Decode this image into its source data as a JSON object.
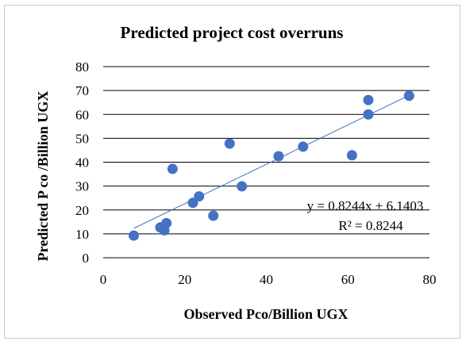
{
  "chart_data": {
    "type": "scatter",
    "title": "Predicted project cost overruns",
    "xlabel": "Observed Pco/Billion UGX",
    "ylabel": "Predicted P co /Billion UGX",
    "xlim": [
      0,
      80
    ],
    "ylim": [
      0,
      80
    ],
    "xticks": [
      "0",
      "20",
      "40",
      "60",
      "80"
    ],
    "yticks": [
      "0",
      "10",
      "20",
      "30",
      "40",
      "50",
      "60",
      "70",
      "80"
    ],
    "grid": "horizontal",
    "points": [
      {
        "x": 7.5,
        "y": 9.3
      },
      {
        "x": 14,
        "y": 12.7
      },
      {
        "x": 15,
        "y": 11.5
      },
      {
        "x": 15.5,
        "y": 14.5
      },
      {
        "x": 17,
        "y": 37.2
      },
      {
        "x": 22,
        "y": 23
      },
      {
        "x": 23.5,
        "y": 25.7
      },
      {
        "x": 27,
        "y": 17.6
      },
      {
        "x": 31,
        "y": 47.8
      },
      {
        "x": 34,
        "y": 29.9
      },
      {
        "x": 43,
        "y": 42.5
      },
      {
        "x": 49,
        "y": 46.5
      },
      {
        "x": 61,
        "y": 42.9
      },
      {
        "x": 65,
        "y": 60
      },
      {
        "x": 65,
        "y": 66
      },
      {
        "x": 75,
        "y": 67.8
      }
    ],
    "trendline": {
      "slope": 0.8244,
      "intercept": 6.1403,
      "x_range": [
        7.5,
        75
      ],
      "equation": "y = 0.8244x + 6.1403",
      "r2_label": "R² = 0.8244"
    },
    "colors": {
      "marker": "#4472c4",
      "trendline": "#4472c4",
      "grid": "#000000"
    }
  }
}
